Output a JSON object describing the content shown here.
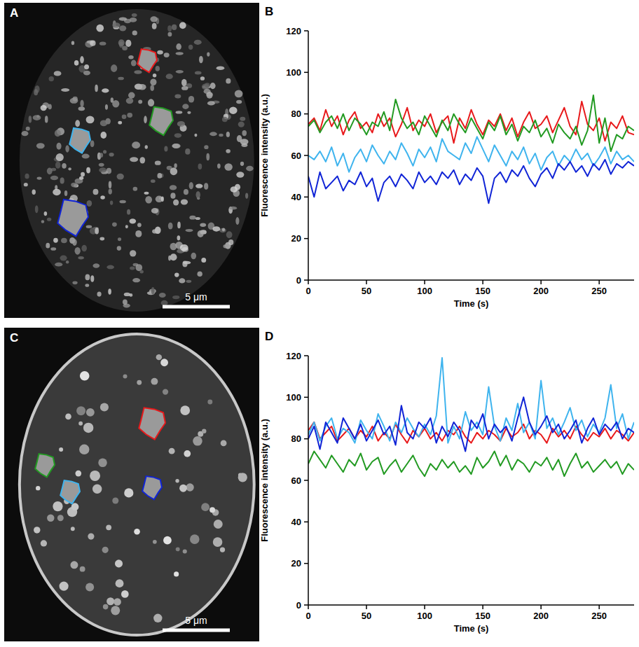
{
  "panel_letters": [
    "A",
    "B",
    "C",
    "D"
  ],
  "images": [
    {
      "scale_bar": "5 μm"
    },
    {
      "scale_bar": "5 μm"
    }
  ],
  "chart_data": [
    {
      "type": "line",
      "x_label": "Time (s)",
      "y_label": "Fluorescence intensity (a.u.)",
      "xlim": [
        0,
        280
      ],
      "ylim": [
        0,
        120
      ],
      "xticks": [
        0,
        50,
        100,
        150,
        200,
        250
      ],
      "yticks": [
        0,
        20,
        40,
        60,
        80,
        100,
        120
      ],
      "grid": false,
      "x": [
        0,
        5,
        10,
        15,
        20,
        25,
        30,
        35,
        40,
        45,
        50,
        55,
        60,
        65,
        70,
        75,
        80,
        85,
        90,
        95,
        100,
        105,
        110,
        115,
        120,
        125,
        130,
        135,
        140,
        145,
        150,
        155,
        160,
        165,
        170,
        175,
        180,
        185,
        190,
        195,
        200,
        205,
        210,
        215,
        220,
        225,
        230,
        235,
        240,
        245,
        250,
        255,
        260,
        265,
        270,
        275,
        280
      ],
      "series": [
        {
          "color": "#e8191b",
          "values": [
            75,
            78,
            72,
            82,
            74,
            79,
            70,
            77,
            81,
            73,
            76,
            71,
            80,
            74,
            78,
            69,
            75,
            83,
            72,
            77,
            74,
            80,
            71,
            76,
            79,
            66,
            78,
            73,
            82,
            75,
            70,
            77,
            74,
            80,
            72,
            78,
            69,
            76,
            81,
            73,
            75,
            79,
            71,
            77,
            83,
            74,
            70,
            86,
            75,
            72,
            78,
            67,
            76,
            73,
            79,
            71,
            70
          ]
        },
        {
          "color": "#229a22",
          "values": [
            74,
            77,
            71,
            76,
            79,
            73,
            80,
            72,
            78,
            75,
            70,
            76,
            74,
            81,
            72,
            87,
            78,
            73,
            76,
            70,
            79,
            74,
            69,
            77,
            72,
            80,
            75,
            71,
            78,
            73,
            68,
            76,
            72,
            79,
            70,
            75,
            67,
            74,
            71,
            77,
            69,
            73,
            66,
            75,
            71,
            68,
            74,
            65,
            72,
            89,
            66,
            78,
            62,
            70,
            68,
            74,
            72
          ]
        },
        {
          "color": "#3fb4ee",
          "values": [
            60,
            58,
            62,
            57,
            64,
            55,
            61,
            52,
            59,
            63,
            57,
            65,
            60,
            56,
            62,
            58,
            66,
            61,
            55,
            63,
            59,
            64,
            57,
            68,
            62,
            60,
            58,
            66,
            61,
            69,
            63,
            57,
            65,
            60,
            55,
            62,
            58,
            64,
            56,
            61,
            53,
            59,
            62,
            55,
            60,
            57,
            63,
            58,
            61,
            55,
            59,
            64,
            56,
            62,
            58,
            60,
            57
          ]
        },
        {
          "color": "#1024d6",
          "values": [
            50,
            40,
            52,
            44,
            47,
            50,
            43,
            48,
            46,
            52,
            45,
            49,
            38,
            47,
            50,
            45,
            51,
            48,
            44,
            52,
            47,
            50,
            46,
            52,
            49,
            53,
            46,
            51,
            48,
            54,
            50,
            37,
            49,
            52,
            47,
            53,
            50,
            55,
            49,
            45,
            51,
            54,
            49,
            56,
            53,
            57,
            52,
            55,
            50,
            56,
            53,
            58,
            51,
            56,
            54,
            57,
            55
          ]
        }
      ]
    },
    {
      "type": "line",
      "x_label": "Time (s)",
      "y_label": "Fluorescence intensity (a.u.)",
      "xlim": [
        0,
        280
      ],
      "ylim": [
        0,
        120
      ],
      "xticks": [
        0,
        50,
        100,
        150,
        200,
        250
      ],
      "yticks": [
        0,
        20,
        40,
        60,
        80,
        100,
        120
      ],
      "grid": false,
      "x": [
        0,
        5,
        10,
        15,
        20,
        25,
        30,
        35,
        40,
        45,
        50,
        55,
        60,
        65,
        70,
        75,
        80,
        85,
        90,
        95,
        100,
        105,
        110,
        115,
        120,
        125,
        130,
        135,
        140,
        145,
        150,
        155,
        160,
        165,
        170,
        175,
        180,
        185,
        190,
        195,
        200,
        205,
        210,
        215,
        220,
        225,
        230,
        235,
        240,
        245,
        250,
        255,
        260,
        265,
        270,
        275,
        280
      ],
      "series": [
        {
          "color": "#e8191b",
          "values": [
            84,
            88,
            80,
            83,
            86,
            79,
            82,
            85,
            80,
            84,
            81,
            86,
            79,
            83,
            80,
            87,
            82,
            78,
            84,
            81,
            85,
            80,
            83,
            79,
            84,
            82,
            86,
            81,
            78,
            83,
            80,
            84,
            82,
            79,
            85,
            81,
            83,
            87,
            80,
            84,
            82,
            78,
            85,
            81,
            84,
            80,
            86,
            82,
            79,
            83,
            81,
            85,
            80,
            84,
            82,
            79,
            83
          ]
        },
        {
          "color": "#229a22",
          "values": [
            68,
            74,
            70,
            66,
            72,
            68,
            64,
            70,
            67,
            73,
            65,
            69,
            71,
            63,
            67,
            70,
            64,
            68,
            72,
            66,
            62,
            68,
            65,
            70,
            66,
            69,
            64,
            67,
            63,
            71,
            66,
            69,
            74,
            67,
            72,
            65,
            70,
            68,
            64,
            69,
            67,
            71,
            65,
            70,
            62,
            68,
            73,
            66,
            69,
            64,
            67,
            70,
            66,
            69,
            63,
            68,
            65
          ]
        },
        {
          "color": "#3fb4ee",
          "values": [
            82,
            88,
            79,
            86,
            90,
            80,
            85,
            83,
            78,
            89,
            84,
            80,
            92,
            86,
            79,
            88,
            83,
            90,
            85,
            81,
            87,
            82,
            91,
            119,
            78,
            86,
            80,
            93,
            84,
            88,
            82,
            105,
            86,
            79,
            90,
            84,
            97,
            83,
            88,
            80,
            108,
            85,
            90,
            82,
            88,
            95,
            84,
            89,
            81,
            87,
            83,
            90,
            106,
            85,
            92,
            80,
            88
          ]
        },
        {
          "color": "#1024d6",
          "values": [
            80,
            86,
            75,
            88,
            83,
            78,
            90,
            85,
            80,
            87,
            79,
            84,
            89,
            82,
            86,
            77,
            96,
            83,
            80,
            88,
            85,
            90,
            78,
            86,
            81,
            88,
            84,
            74,
            89,
            85,
            92,
            80,
            87,
            83,
            86,
            79,
            90,
            100,
            88,
            82,
            86,
            91,
            83,
            87,
            80,
            84,
            89,
            78,
            85,
            90,
            82,
            87,
            84,
            88,
            80,
            85,
            83
          ]
        }
      ]
    }
  ]
}
